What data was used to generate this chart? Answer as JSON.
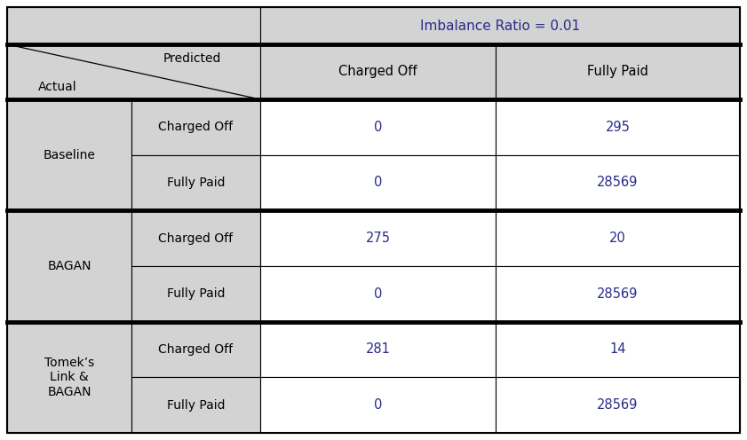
{
  "title": "Imbalance Ratio = 0.01",
  "header_bg": "#d3d3d3",
  "cell_bg_white": "#ffffff",
  "border_color": "#000000",
  "font_color_data": "#2a2a8a",
  "font_color_label": "#2a2a8a",
  "font_color_black": "#000000",
  "col_header_labels": [
    "Charged Off",
    "Fully Paid"
  ],
  "row_groups": [
    {
      "group_label": "Baseline",
      "rows": [
        {
          "label": "Charged Off",
          "values": [
            "0",
            "295"
          ]
        },
        {
          "label": "Fully Paid",
          "values": [
            "0",
            "28569"
          ]
        }
      ]
    },
    {
      "group_label": "BAGAN",
      "rows": [
        {
          "label": "Charged Off",
          "values": [
            "275",
            "20"
          ]
        },
        {
          "label": "Fully Paid",
          "values": [
            "0",
            "28569"
          ]
        }
      ]
    },
    {
      "group_label": "Tomek’s\nLink &\nBAGAN",
      "rows": [
        {
          "label": "Charged Off",
          "values": [
            "281",
            "14"
          ]
        },
        {
          "label": "Fully Paid",
          "values": [
            "0",
            "28569"
          ]
        }
      ]
    }
  ],
  "predicted_label": "Predicted",
  "actual_label": "Actual",
  "figsize": [
    8.41,
    4.96
  ],
  "dpi": 100
}
